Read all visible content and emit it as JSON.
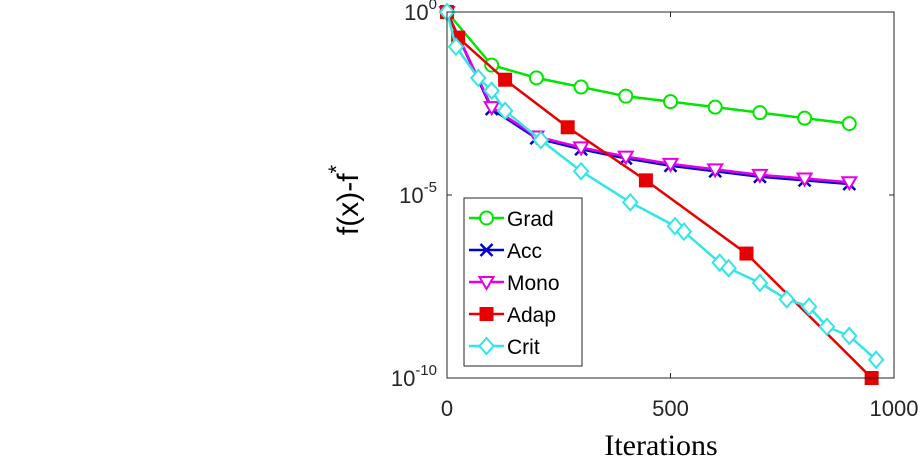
{
  "chart_data": {
    "type": "line",
    "xlabel": "Iterations",
    "ylabel_base": "f(x)-f",
    "ylabel_sup": "*",
    "y_scale": "log10",
    "xlim": [
      0,
      1000
    ],
    "ylim_log10": [
      -10,
      0
    ],
    "x_ticks": [
      {
        "value": 0,
        "label": "0"
      },
      {
        "value": 500,
        "label": "500"
      },
      {
        "value": 1000,
        "label": "1000"
      }
    ],
    "y_ticks": [
      {
        "value": 0,
        "base": "10",
        "exp": "0"
      },
      {
        "value": -5,
        "base": "10",
        "exp": "-5"
      },
      {
        "value": -10,
        "base": "10",
        "exp": "-10"
      }
    ],
    "legend_position": "bottom-left",
    "series": [
      {
        "name": "Grad",
        "color": "#00e600",
        "marker": "circle",
        "filled": false,
        "x": [
          0,
          100,
          200,
          300,
          400,
          500,
          600,
          700,
          800,
          900
        ],
        "log10_y": [
          0,
          -1.45,
          -1.8,
          -2.05,
          -2.3,
          -2.45,
          -2.6,
          -2.75,
          -2.9,
          -3.05
        ]
      },
      {
        "name": "Acc",
        "color": "#0000cc",
        "marker": "x",
        "filled": false,
        "x": [
          0,
          100,
          200,
          300,
          400,
          500,
          600,
          700,
          800,
          900
        ],
        "log10_y": [
          0,
          -2.65,
          -3.45,
          -3.75,
          -4.0,
          -4.2,
          -4.35,
          -4.5,
          -4.6,
          -4.7
        ]
      },
      {
        "name": "Mono",
        "color": "#e600e6",
        "marker": "triangle-down",
        "filled": false,
        "x": [
          0,
          100,
          200,
          300,
          400,
          500,
          600,
          700,
          800,
          900
        ],
        "log10_y": [
          0,
          -2.6,
          -3.4,
          -3.7,
          -3.95,
          -4.15,
          -4.3,
          -4.45,
          -4.55,
          -4.65
        ]
      },
      {
        "name": "Adap",
        "color": "#e60000",
        "marker": "square",
        "filled": true,
        "x": [
          0,
          25,
          130,
          270,
          445,
          670,
          950
        ],
        "log10_y": [
          0,
          -0.7,
          -1.85,
          -3.15,
          -4.6,
          -6.6,
          -10.0
        ]
      },
      {
        "name": "Crit",
        "color": "#33e6e6",
        "marker": "diamond",
        "filled": false,
        "x": [
          0,
          20,
          70,
          100,
          130,
          210,
          300,
          410,
          510,
          530,
          610,
          630,
          700,
          760,
          810,
          850,
          900,
          960
        ],
        "log10_y": [
          0,
          -0.95,
          -1.8,
          -2.15,
          -2.7,
          -3.5,
          -4.35,
          -5.2,
          -5.85,
          -6.0,
          -6.85,
          -7.0,
          -7.4,
          -7.85,
          -8.05,
          -8.6,
          -8.85,
          -9.5
        ]
      }
    ]
  }
}
